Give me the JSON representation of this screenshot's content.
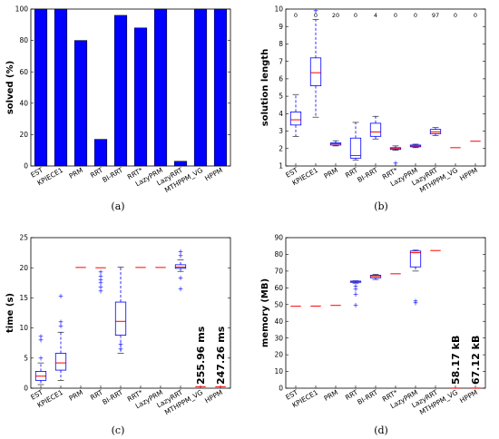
{
  "chart_data": [
    {
      "type": "bar",
      "caption": "(a)",
      "ylabel": "solved (%)",
      "ylim": [
        0,
        100
      ],
      "yticks": [
        "0",
        "20",
        "40",
        "60",
        "80",
        "100"
      ],
      "bar_color": "#0000ff",
      "categories": [
        "EST",
        "KPIECE1",
        "PRM",
        "RRT",
        "BI-RRT",
        "RRT*",
        "LazyPRM",
        "LazyRRT",
        "MTHPPM_VG",
        "HPPM"
      ],
      "values": [
        100,
        100,
        80,
        17,
        96,
        88,
        100,
        3,
        100,
        100
      ]
    },
    {
      "type": "box",
      "caption": "(b)",
      "ylabel": "solution length",
      "ylim": [
        1,
        10
      ],
      "yticks": [
        "1",
        "2",
        "3",
        "4",
        "5",
        "6",
        "7",
        "8",
        "9",
        "10"
      ],
      "categories": [
        "EST",
        "KPIECE1",
        "PRM",
        "RRT",
        "BI-RRT",
        "RRT*",
        "LazyPRM",
        "LazyRRT",
        "MTHPPM_VG",
        "HPPM"
      ],
      "counts": [
        "0",
        "0",
        "20",
        "0",
        "4",
        "0",
        "0",
        "97",
        "0",
        "0"
      ],
      "boxes": [
        {
          "whislo": 2.7,
          "q1": 3.35,
          "med": 3.65,
          "q3": 4.1,
          "whishi": 5.1,
          "fliers": []
        },
        {
          "whislo": 3.8,
          "q1": 5.6,
          "med": 6.35,
          "q3": 7.2,
          "whishi": 9.4,
          "fliers": [
            9.9
          ]
        },
        {
          "whislo": 2.15,
          "q1": 2.2,
          "med": 2.27,
          "q3": 2.32,
          "whishi": 2.45,
          "fliers": []
        },
        {
          "whislo": 1.35,
          "q1": 1.45,
          "med": 1.6,
          "q3": 2.6,
          "whishi": 3.5,
          "fliers": []
        },
        {
          "whislo": 2.55,
          "q1": 2.7,
          "med": 2.95,
          "q3": 3.45,
          "whishi": 3.85,
          "fliers": []
        },
        {
          "whislo": 1.9,
          "q1": 1.95,
          "med": 2.0,
          "q3": 2.05,
          "whishi": 2.15,
          "fliers": [
            1.15
          ]
        },
        {
          "whislo": 2.05,
          "q1": 2.1,
          "med": 2.15,
          "q3": 2.2,
          "whishi": 2.25,
          "fliers": []
        },
        {
          "whislo": 2.75,
          "q1": 2.85,
          "med": 2.95,
          "q3": 3.1,
          "whishi": 3.2,
          "fliers": []
        },
        {
          "whislo": 2.05,
          "q1": 2.05,
          "med": 2.05,
          "q3": 2.05,
          "whishi": 2.05,
          "fliers": []
        },
        {
          "whislo": 2.42,
          "q1": 2.42,
          "med": 2.42,
          "q3": 2.42,
          "whishi": 2.42,
          "fliers": []
        }
      ]
    },
    {
      "type": "box",
      "caption": "(c)",
      "ylabel": "time (s)",
      "ylim": [
        0,
        25
      ],
      "yticks": [
        "0",
        "5",
        "10",
        "15",
        "20",
        "25"
      ],
      "categories": [
        "EST",
        "KPIECE1",
        "PRM",
        "RRT",
        "BI-RRT",
        "RRT*",
        "LazyPRM",
        "LazyRRT",
        "MTHPPM_VG",
        "HPPM"
      ],
      "annotations": [
        {
          "category": "MTHPPM_VG",
          "text": "255.96 ms"
        },
        {
          "category": "HPPM",
          "text": "247.26 ms"
        }
      ],
      "boxes": [
        {
          "whislo": 0.6,
          "q1": 1.3,
          "med": 2.0,
          "q3": 2.8,
          "whishi": 4.2,
          "fliers": [
            5.0,
            8.0,
            8.6
          ]
        },
        {
          "whislo": 1.3,
          "q1": 3.0,
          "med": 4.2,
          "q3": 5.8,
          "whishi": 9.3,
          "fliers": [
            10.3,
            11.0,
            15.3
          ]
        },
        {
          "whislo": 19.95,
          "q1": 20.0,
          "med": 20.05,
          "q3": 20.1,
          "whishi": 20.15,
          "fliers": []
        },
        {
          "whislo": 19.7,
          "q1": 19.9,
          "med": 20.0,
          "q3": 20.05,
          "whishi": 20.1,
          "fliers": [
            19.3,
            18.6,
            18.0,
            17.5,
            16.8,
            16.1
          ]
        },
        {
          "whislo": 5.8,
          "q1": 8.8,
          "med": 11.1,
          "q3": 14.3,
          "whishi": 20.1,
          "fliers": [
            6.5,
            7.3
          ]
        },
        {
          "whislo": 19.95,
          "q1": 20.0,
          "med": 20.05,
          "q3": 20.1,
          "whishi": 20.15,
          "fliers": []
        },
        {
          "whislo": 19.95,
          "q1": 20.0,
          "med": 20.05,
          "q3": 20.1,
          "whishi": 20.15,
          "fliers": []
        },
        {
          "whislo": 19.4,
          "q1": 19.9,
          "med": 20.1,
          "q3": 20.5,
          "whishi": 21.3,
          "fliers": [
            16.5,
            18.3,
            22.0,
            22.7
          ]
        },
        {
          "whislo": 0.256,
          "q1": 0.256,
          "med": 0.256,
          "q3": 0.256,
          "whishi": 0.256,
          "fliers": []
        },
        {
          "whislo": 0.247,
          "q1": 0.247,
          "med": 0.247,
          "q3": 0.247,
          "whishi": 0.247,
          "fliers": []
        }
      ]
    },
    {
      "type": "box",
      "caption": "(d)",
      "ylabel": "memory (MB)",
      "ylim": [
        0,
        90
      ],
      "yticks": [
        "0",
        "10",
        "20",
        "30",
        "40",
        "50",
        "60",
        "70",
        "80",
        "90"
      ],
      "categories": [
        "EST",
        "KPIECE1",
        "PRM",
        "RRT",
        "BI-RRT",
        "RRT*",
        "LazyPRM",
        "LazyRRT",
        "MTHPPM_VG",
        "HPPM"
      ],
      "annotations": [
        {
          "category": "MTHPPM_VG",
          "text": "58.17 kB"
        },
        {
          "category": "HPPM",
          "text": "67.12 kB"
        }
      ],
      "boxes": [
        {
          "whislo": 48.7,
          "q1": 48.9,
          "med": 49.0,
          "q3": 49.1,
          "whishi": 49.3,
          "fliers": []
        },
        {
          "whislo": 48.9,
          "q1": 49.0,
          "med": 49.1,
          "q3": 49.2,
          "whishi": 49.3,
          "fliers": []
        },
        {
          "whislo": 49.3,
          "q1": 49.4,
          "med": 49.5,
          "q3": 49.6,
          "whishi": 49.7,
          "fliers": []
        },
        {
          "whislo": 62.8,
          "q1": 63.3,
          "med": 63.7,
          "q3": 64.0,
          "whishi": 64.2,
          "fliers": [
            61.0,
            59.0,
            56.0,
            49.5
          ]
        },
        {
          "whislo": 65.0,
          "q1": 66.0,
          "med": 66.8,
          "q3": 67.5,
          "whishi": 68.0,
          "fliers": []
        },
        {
          "whislo": 68.3,
          "q1": 68.3,
          "med": 68.4,
          "q3": 68.5,
          "whishi": 68.5,
          "fliers": []
        },
        {
          "whislo": 70.0,
          "q1": 72.5,
          "med": 81.0,
          "q3": 82.0,
          "whishi": 82.5,
          "fliers": [
            52.0,
            51.0
          ]
        },
        {
          "whislo": 82.2,
          "q1": 82.2,
          "med": 82.3,
          "q3": 82.4,
          "whishi": 82.4,
          "fliers": []
        },
        {
          "whislo": 0.06,
          "q1": 0.06,
          "med": 0.06,
          "q3": 0.06,
          "whishi": 0.06,
          "fliers": []
        },
        {
          "whislo": 0.07,
          "q1": 0.07,
          "med": 0.07,
          "q3": 0.07,
          "whishi": 0.07,
          "fliers": []
        }
      ]
    }
  ]
}
